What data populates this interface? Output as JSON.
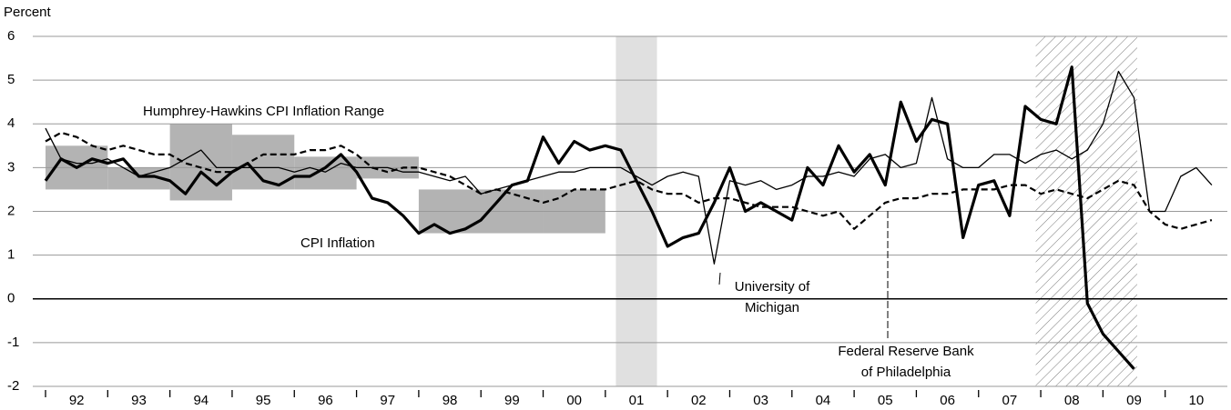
{
  "chart_data": {
    "type": "line",
    "y_label": "Percent",
    "xlim": [
      1992,
      2011
    ],
    "ylim": [
      -2,
      6
    ],
    "yticks": [
      -2,
      -1,
      0,
      1,
      2,
      3,
      4,
      5,
      6
    ],
    "xticks": [
      {
        "value": 1992,
        "label": "92"
      },
      {
        "value": 1993,
        "label": "93"
      },
      {
        "value": 1994,
        "label": "94"
      },
      {
        "value": 1995,
        "label": "95"
      },
      {
        "value": 1996,
        "label": "96"
      },
      {
        "value": 1997,
        "label": "97"
      },
      {
        "value": 1998,
        "label": "98"
      },
      {
        "value": 1999,
        "label": "99"
      },
      {
        "value": 2000,
        "label": "00"
      },
      {
        "value": 2001,
        "label": "01"
      },
      {
        "value": 2002,
        "label": "02"
      },
      {
        "value": 2003,
        "label": "03"
      },
      {
        "value": 2004,
        "label": "04"
      },
      {
        "value": 2005,
        "label": "05"
      },
      {
        "value": 2006,
        "label": "06"
      },
      {
        "value": 2007,
        "label": "07"
      },
      {
        "value": 2008,
        "label": "08"
      },
      {
        "value": 2009,
        "label": "09"
      },
      {
        "value": 2010,
        "label": "10"
      }
    ],
    "grid": true,
    "target_range": {
      "label": "Humphrey-Hawkins CPI Inflation Range",
      "color": "#b3b3b3",
      "ranges": [
        {
          "start": 1992,
          "end": 1993,
          "low": 2.5,
          "high": 3.5
        },
        {
          "start": 1993,
          "end": 1994,
          "low": 2.5,
          "high": 3.0
        },
        {
          "start": 1994,
          "end": 1995,
          "low": 2.25,
          "high": 4.0
        },
        {
          "start": 1995,
          "end": 1996,
          "low": 2.5,
          "high": 3.75
        },
        {
          "start": 1996,
          "end": 1997,
          "low": 2.5,
          "high": 3.25
        },
        {
          "start": 1997,
          "end": 1998,
          "low": 2.75,
          "high": 3.25
        },
        {
          "start": 1998,
          "end": 2000,
          "low": 1.5,
          "high": 2.5
        },
        {
          "start": 2000,
          "end": 2001,
          "low": 1.5,
          "high": 2.5
        }
      ]
    },
    "shaded_periods": [
      {
        "start": 2001.17,
        "end": 2001.83,
        "style": "solid",
        "color": "#e0e0e0"
      },
      {
        "start": 2007.92,
        "end": 2009.55,
        "style": "hatched",
        "color": "#777777"
      }
    ],
    "x": [
      1992,
      1992.25,
      1992.5,
      1992.75,
      1993,
      1993.25,
      1993.5,
      1993.75,
      1994,
      1994.25,
      1994.5,
      1994.75,
      1995,
      1995.25,
      1995.5,
      1995.75,
      1996,
      1996.25,
      1996.5,
      1996.75,
      1997,
      1997.25,
      1997.5,
      1997.75,
      1998,
      1998.25,
      1998.5,
      1998.75,
      1999,
      1999.25,
      1999.5,
      1999.75,
      2000,
      2000.25,
      2000.5,
      2000.75,
      2001,
      2001.25,
      2001.5,
      2001.75,
      2002,
      2002.25,
      2002.5,
      2002.75,
      2003,
      2003.25,
      2003.5,
      2003.75,
      2004,
      2004.25,
      2004.5,
      2004.75,
      2005,
      2005.25,
      2005.5,
      2005.75,
      2006,
      2006.25,
      2006.5,
      2006.75,
      2007,
      2007.25,
      2007.5,
      2007.75,
      2008,
      2008.25,
      2008.5,
      2008.75,
      2009,
      2009.25,
      2009.5,
      2009.75,
      2010,
      2010.25,
      2010.5,
      2010.75
    ],
    "series": [
      {
        "label": [
          "CPI Inflation"
        ],
        "color": "#000000",
        "width": 3.2,
        "dash": "none",
        "values": [
          2.7,
          3.2,
          3.0,
          3.2,
          3.1,
          3.2,
          2.8,
          2.8,
          2.7,
          2.4,
          2.9,
          2.6,
          2.9,
          3.1,
          2.7,
          2.6,
          2.8,
          2.8,
          3.0,
          3.3,
          2.9,
          2.3,
          2.2,
          1.9,
          1.5,
          1.7,
          1.5,
          1.6,
          1.8,
          2.2,
          2.6,
          2.7,
          3.7,
          3.1,
          3.6,
          3.4,
          3.5,
          3.4,
          2.7,
          2.0,
          1.2,
          1.4,
          1.5,
          2.2,
          3.0,
          2.0,
          2.2,
          2.0,
          1.8,
          3.0,
          2.6,
          3.5,
          2.9,
          3.3,
          2.6,
          4.5,
          3.6,
          4.1,
          4.0,
          1.4,
          2.6,
          2.7,
          1.9,
          4.4,
          4.1,
          4.0,
          5.3,
          -0.1,
          -0.8,
          -1.2,
          -1.6,
          null,
          null,
          null,
          null,
          null
        ]
      },
      {
        "label": [
          "University of",
          "Michigan"
        ],
        "color": "#000000",
        "width": 1.3,
        "dash": "none",
        "values": [
          3.9,
          3.2,
          3.1,
          3.1,
          3.2,
          3.0,
          2.8,
          2.9,
          3.0,
          3.2,
          3.4,
          3.0,
          3.0,
          3.0,
          3.0,
          3.0,
          2.9,
          3.0,
          2.9,
          3.1,
          3.0,
          3.0,
          3.0,
          2.9,
          2.9,
          2.8,
          2.7,
          2.8,
          2.4,
          2.5,
          2.6,
          2.7,
          2.8,
          2.9,
          2.9,
          3.0,
          3.0,
          3.0,
          2.8,
          2.6,
          2.8,
          2.9,
          2.8,
          0.8,
          2.7,
          2.6,
          2.7,
          2.5,
          2.6,
          2.8,
          2.8,
          2.9,
          2.8,
          3.2,
          3.3,
          3.0,
          3.1,
          4.6,
          3.2,
          3.0,
          3.0,
          3.3,
          3.3,
          3.1,
          3.3,
          3.4,
          3.2,
          3.4,
          4.0,
          5.2,
          4.6,
          2.0,
          2.0,
          2.8,
          3.0,
          2.6
        ]
      },
      {
        "label": [
          "Federal Reserve Bank",
          "of Philadelphia"
        ],
        "color": "#000000",
        "width": 2.2,
        "dash": "7,4",
        "values": [
          3.6,
          3.8,
          3.7,
          3.5,
          3.4,
          3.5,
          3.4,
          3.3,
          3.3,
          3.1,
          3.0,
          2.9,
          2.9,
          3.1,
          3.3,
          3.3,
          3.3,
          3.4,
          3.4,
          3.5,
          3.3,
          3.0,
          2.9,
          3.0,
          3.0,
          2.9,
          2.8,
          2.6,
          2.4,
          2.5,
          2.4,
          2.3,
          2.2,
          2.3,
          2.5,
          2.5,
          2.5,
          2.6,
          2.7,
          2.5,
          2.4,
          2.4,
          2.2,
          2.3,
          2.3,
          2.2,
          2.1,
          2.1,
          2.1,
          2.0,
          1.9,
          2.0,
          1.6,
          1.9,
          2.2,
          2.3,
          2.3,
          2.4,
          2.4,
          2.5,
          2.5,
          2.5,
          2.6,
          2.6,
          2.4,
          2.5,
          2.4,
          2.3,
          2.5,
          2.7,
          2.6,
          2.0,
          1.7,
          1.6,
          1.7,
          1.8
        ]
      }
    ]
  }
}
